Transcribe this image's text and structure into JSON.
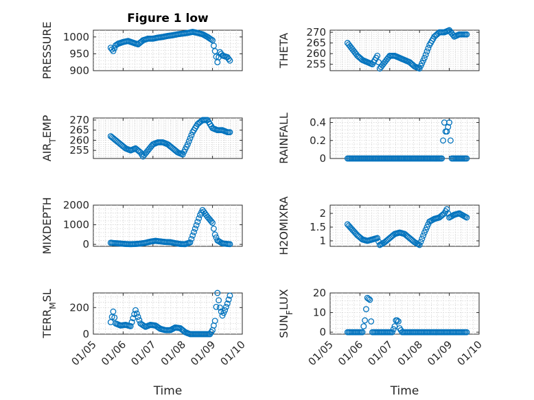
{
  "chart_data": [
    {
      "type": "scatter",
      "title": "Figure 1 low",
      "ylabel": "PRESSURE",
      "xlabel": "",
      "ylim": [
        900,
        1020
      ],
      "yticks": [
        900,
        950,
        1000
      ],
      "grid": true,
      "marker_color": "#0072BD",
      "x": [
        "01/05 14:00",
        "01/05 16:00",
        "01/05 18:00",
        "01/05 20:00",
        "01/06 00:00",
        "01/06 04:00",
        "01/06 08:00",
        "01/06 12:00",
        "01/06 16:00",
        "01/06 20:00",
        "01/07 00:00",
        "01/07 04:00",
        "01/07 08:00",
        "01/07 12:00",
        "01/07 16:00",
        "01/07 20:00",
        "01/08 00:00",
        "01/08 04:00",
        "01/08 08:00",
        "01/08 12:00",
        "01/08 16:00",
        "01/08 20:00",
        "01/09 00:00",
        "01/09 02:00",
        "01/09 04:00",
        "01/09 06:00",
        "01/09 08:00",
        "01/09 12:00",
        "01/09 14:00"
      ],
      "y": [
        968,
        958,
        975,
        980,
        985,
        988,
        983,
        978,
        990,
        995,
        995,
        998,
        1000,
        1003,
        1005,
        1008,
        1010,
        1012,
        1015,
        1012,
        1008,
        1000,
        990,
        958,
        925,
        955,
        945,
        940,
        930
      ]
    },
    {
      "type": "scatter",
      "title": "",
      "ylabel": "THETA",
      "xlabel": "",
      "ylim": [
        252,
        271
      ],
      "yticks": [
        255,
        260,
        265,
        270
      ],
      "grid": true,
      "marker_color": "#0072BD",
      "x": [
        "01/05 14:00",
        "01/05 18:00",
        "01/05 22:00",
        "01/06 02:00",
        "01/06 06:00",
        "01/06 10:00",
        "01/06 14:00",
        "01/06 16:00",
        "01/06 20:00",
        "01/07 00:00",
        "01/07 04:00",
        "01/07 08:00",
        "01/07 12:00",
        "01/07 16:00",
        "01/07 20:00",
        "01/08 00:00",
        "01/08 04:00",
        "01/08 08:00",
        "01/08 12:00",
        "01/08 16:00",
        "01/08 20:00",
        "01/09 00:00",
        "01/09 04:00",
        "01/09 08:00",
        "01/09 12:00",
        "01/09 14:00"
      ],
      "y": [
        265,
        262,
        259,
        257,
        256,
        255,
        259,
        253,
        256,
        259,
        259,
        258,
        257,
        256,
        254,
        253,
        258,
        264,
        268,
        270,
        270,
        271,
        268,
        269,
        269,
        269
      ]
    },
    {
      "type": "scatter",
      "title": "",
      "ylabel": "AIR_TEMP",
      "xlabel": "",
      "ylim": [
        251,
        271
      ],
      "yticks": [
        255,
        260,
        265,
        270
      ],
      "grid": true,
      "marker_color": "#0072BD",
      "x": [
        "01/05 14:00",
        "01/05 18:00",
        "01/05 22:00",
        "01/06 02:00",
        "01/06 06:00",
        "01/06 10:00",
        "01/06 14:00",
        "01/06 16:00",
        "01/06 20:00",
        "01/07 00:00",
        "01/07 04:00",
        "01/07 08:00",
        "01/07 12:00",
        "01/07 16:00",
        "01/07 20:00",
        "01/08 00:00",
        "01/08 04:00",
        "01/08 08:00",
        "01/08 12:00",
        "01/08 16:00",
        "01/08 20:00",
        "01/09 00:00",
        "01/09 04:00",
        "01/09 08:00",
        "01/09 12:00",
        "01/09 14:00"
      ],
      "y": [
        262,
        260,
        258,
        256,
        255,
        256,
        254,
        252,
        255,
        258,
        259,
        259,
        258,
        256,
        254,
        253,
        258,
        264,
        268,
        270,
        270,
        266,
        265,
        265,
        264,
        264
      ]
    },
    {
      "type": "scatter",
      "title": "",
      "ylabel": "RAINFALL",
      "xlabel": "",
      "ylim": [
        0,
        0.45
      ],
      "yticks": [
        0,
        0.2,
        0.4
      ],
      "grid": true,
      "marker_color": "#0072BD",
      "x": [
        "01/05 14:00",
        "01/05 20:00",
        "01/06 02:00",
        "01/06 08:00",
        "01/06 14:00",
        "01/06 20:00",
        "01/07 02:00",
        "01/07 08:00",
        "01/07 14:00",
        "01/07 20:00",
        "01/08 02:00",
        "01/08 08:00",
        "01/08 14:00",
        "01/08 18:00",
        "01/08 20:00",
        "01/08 21:00",
        "01/08 22:00",
        "01/09 00:00",
        "01/09 02:00",
        "01/09 06:00",
        "01/09 10:00",
        "01/09 14:00"
      ],
      "y": [
        0,
        0,
        0,
        0,
        0,
        0,
        0,
        0,
        0,
        0,
        0,
        0,
        0,
        0,
        0.4,
        0.3,
        0.3,
        0.4,
        0,
        0,
        0,
        0
      ]
    },
    {
      "type": "scatter",
      "title": "",
      "ylabel": "MIXDEPTH",
      "xlabel": "",
      "ylim": [
        -100,
        2000
      ],
      "yticks": [
        0,
        1000,
        2000
      ],
      "grid": true,
      "marker_color": "#0072BD",
      "x": [
        "01/05 14:00",
        "01/05 18:00",
        "01/05 22:00",
        "01/06 02:00",
        "01/06 06:00",
        "01/06 10:00",
        "01/06 14:00",
        "01/06 18:00",
        "01/06 22:00",
        "01/07 02:00",
        "01/07 06:00",
        "01/07 10:00",
        "01/07 14:00",
        "01/07 18:00",
        "01/07 22:00",
        "01/08 02:00",
        "01/08 06:00",
        "01/08 10:00",
        "01/08 14:00",
        "01/08 16:00",
        "01/08 20:00",
        "01/09 00:00",
        "01/09 02:00",
        "01/09 04:00",
        "01/09 08:00",
        "01/09 12:00",
        "01/09 14:00"
      ],
      "y": [
        80,
        60,
        40,
        20,
        10,
        20,
        40,
        80,
        140,
        180,
        150,
        120,
        110,
        60,
        20,
        10,
        100,
        800,
        1500,
        1750,
        1400,
        1100,
        500,
        200,
        50,
        20,
        10
      ]
    },
    {
      "type": "scatter",
      "title": "",
      "ylabel": "H2OMIXRA",
      "xlabel": "",
      "ylim": [
        0.8,
        2.3
      ],
      "yticks": [
        1,
        1.5,
        2
      ],
      "grid": true,
      "marker_color": "#0072BD",
      "x": [
        "01/05 14:00",
        "01/05 18:00",
        "01/05 22:00",
        "01/06 02:00",
        "01/06 06:00",
        "01/06 10:00",
        "01/06 14:00",
        "01/06 16:00",
        "01/06 20:00",
        "01/07 00:00",
        "01/07 04:00",
        "01/07 08:00",
        "01/07 12:00",
        "01/07 16:00",
        "01/07 20:00",
        "01/08 00:00",
        "01/08 04:00",
        "01/08 08:00",
        "01/08 12:00",
        "01/08 16:00",
        "01/08 20:00",
        "01/08 22:00",
        "01/09 00:00",
        "01/09 04:00",
        "01/09 08:00",
        "01/09 12:00",
        "01/09 14:00"
      ],
      "y": [
        1.6,
        1.4,
        1.2,
        1.05,
        1.0,
        1.05,
        1.1,
        0.85,
        0.95,
        1.1,
        1.25,
        1.3,
        1.25,
        1.1,
        0.95,
        0.85,
        1.3,
        1.7,
        1.8,
        1.85,
        2.0,
        2.15,
        1.85,
        1.95,
        2.0,
        1.9,
        1.85
      ]
    },
    {
      "type": "scatter",
      "title": "",
      "ylabel": "TERR_MSL",
      "xlabel": "Time",
      "ylim": [
        0,
        310
      ],
      "yticks": [
        0,
        200
      ],
      "xticks": [
        "01/05",
        "01/06",
        "01/07",
        "01/08",
        "01/09",
        "01/10"
      ],
      "grid": true,
      "marker_color": "#0072BD",
      "x": [
        "01/05 14:00",
        "01/05 16:00",
        "01/05 18:00",
        "01/05 22:00",
        "01/06 02:00",
        "01/06 06:00",
        "01/06 08:00",
        "01/06 10:00",
        "01/06 14:00",
        "01/06 18:00",
        "01/06 22:00",
        "01/07 02:00",
        "01/07 06:00",
        "01/07 10:00",
        "01/07 14:00",
        "01/07 18:00",
        "01/07 22:00",
        "01/08 02:00",
        "01/08 06:00",
        "01/08 10:00",
        "01/08 14:00",
        "01/08 18:00",
        "01/08 22:00",
        "01/09 00:00",
        "01/09 02:00",
        "01/09 04:00",
        "01/09 06:00",
        "01/09 08:00",
        "01/09 10:00",
        "01/09 12:00",
        "01/09 14:00"
      ],
      "y": [
        90,
        170,
        80,
        65,
        70,
        60,
        120,
        180,
        80,
        55,
        70,
        65,
        40,
        30,
        30,
        50,
        45,
        15,
        0,
        0,
        0,
        0,
        0,
        30,
        100,
        310,
        200,
        140,
        180,
        230,
        290
      ]
    },
    {
      "type": "scatter",
      "title": "",
      "ylabel": "SUN_FLUX",
      "xlabel": "Time",
      "ylim": [
        -1,
        20
      ],
      "yticks": [
        0,
        10,
        20
      ],
      "xticks": [
        "01/05",
        "01/06",
        "01/07",
        "01/08",
        "01/09",
        "01/10"
      ],
      "grid": true,
      "marker_color": "#0072BD",
      "x": [
        "01/05 14:00",
        "01/05 18:00",
        "01/05 22:00",
        "01/06 02:00",
        "01/06 04:00",
        "01/06 06:00",
        "01/06 07:00",
        "01/06 08:00",
        "01/06 09:00",
        "01/06 10:00",
        "01/06 12:00",
        "01/06 16:00",
        "01/06 20:00",
        "01/07 00:00",
        "01/07 02:00",
        "01/07 04:00",
        "01/07 05:00",
        "01/07 06:00",
        "01/07 07:00",
        "01/07 08:00",
        "01/07 10:00",
        "01/07 14:00",
        "01/07 18:00",
        "01/07 22:00",
        "01/08 04:00",
        "01/08 10:00",
        "01/08 16:00",
        "01/08 22:00",
        "01/09 04:00",
        "01/09 10:00",
        "01/09 14:00"
      ],
      "y": [
        0,
        0,
        0,
        0,
        6,
        17.5,
        17,
        16.5,
        5.5,
        0,
        0,
        0,
        0,
        0,
        0,
        3,
        6,
        6,
        5.5,
        2,
        0,
        0,
        0,
        0,
        0,
        0,
        0,
        0,
        0,
        0,
        0
      ]
    }
  ]
}
